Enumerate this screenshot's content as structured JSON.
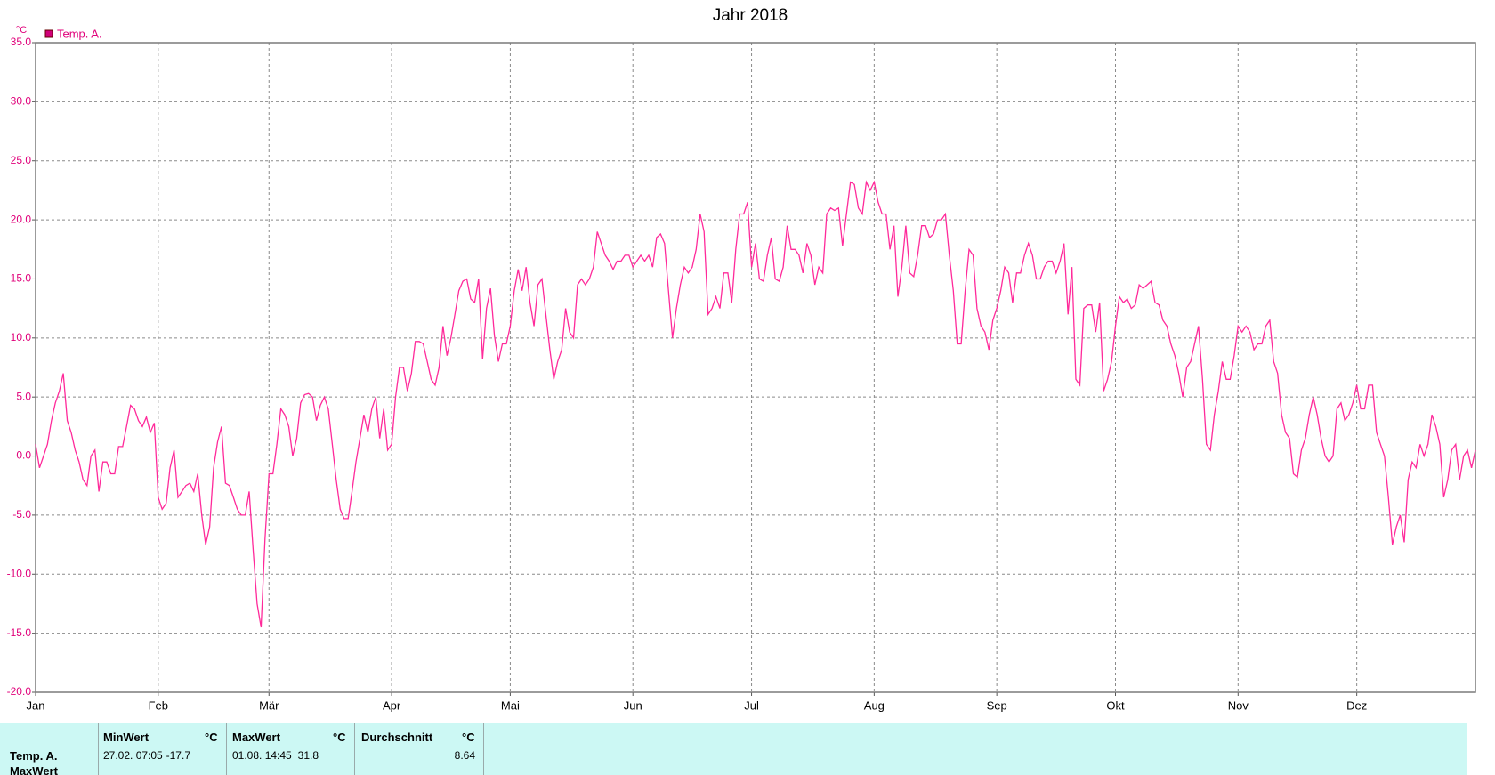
{
  "chart_data": {
    "type": "line",
    "title": "Jahr 2018",
    "y_unit": "°C",
    "series": [
      {
        "name": "Temp. A.",
        "color": "#ff2a9a",
        "values": [
          1,
          -1,
          0,
          1,
          3,
          4.5,
          5.5,
          7,
          3,
          2,
          0.5,
          -0.5,
          -2,
          -2.5,
          0,
          0.5,
          -3,
          -0.5,
          -0.5,
          -1.5,
          -1.5,
          0.8,
          0.8,
          2.5,
          4.3,
          4,
          3,
          2.5,
          3.3,
          2,
          2.8,
          -3.5,
          -4.5,
          -4,
          -1,
          0.5,
          -3.5,
          -3,
          -2.5,
          -2.3,
          -3,
          -1.5,
          -5,
          -7.5,
          -6,
          -1,
          1.2,
          2.5,
          -2.3,
          -2.5,
          -3.5,
          -4.5,
          -5,
          -5,
          -3,
          -8,
          -12.5,
          -14.5,
          -7,
          -1.5,
          -1.5,
          1,
          4,
          3.5,
          2.5,
          0,
          1.5,
          4.5,
          5.2,
          5.3,
          5,
          3,
          4.3,
          5,
          4,
          1,
          -2,
          -4.5,
          -5.3,
          -5.3,
          -3,
          -0.5,
          1.5,
          3.5,
          2,
          4,
          5,
          1.5,
          4,
          0.5,
          1,
          5,
          7.5,
          7.5,
          5.5,
          7,
          9.7,
          9.7,
          9.5,
          8,
          6.5,
          6,
          7.5,
          11,
          8.5,
          10,
          12,
          14,
          14.8,
          15,
          13.3,
          13,
          15,
          8.2,
          12.5,
          14.2,
          10.2,
          8,
          9.5,
          9.5,
          11,
          14,
          15.8,
          14,
          16,
          13,
          11,
          14.5,
          15,
          12,
          9,
          6.5,
          8,
          9,
          12.5,
          10.5,
          10,
          14.5,
          15,
          14.5,
          15,
          16,
          19,
          18,
          17,
          16.5,
          15.8,
          16.5,
          16.5,
          17,
          17,
          16,
          16.5,
          17,
          16.5,
          17,
          16,
          18.5,
          18.8,
          18,
          14,
          10,
          12.5,
          14.5,
          16,
          15.5,
          16,
          17.5,
          20.5,
          19,
          12,
          12.5,
          13.5,
          12.5,
          15.5,
          15.5,
          13,
          17.5,
          20.5,
          20.5,
          21.5,
          16,
          18,
          15,
          14.8,
          17,
          18.5,
          15,
          14.8,
          16,
          19.5,
          17.5,
          17.5,
          17,
          15.5,
          18,
          17,
          14.5,
          16,
          15.5,
          20.5,
          21,
          20.8,
          21,
          17.8,
          20.5,
          23.2,
          23,
          21,
          20.5,
          23.2,
          22.5,
          23.2,
          21.5,
          20.5,
          20.5,
          17.5,
          19.5,
          13.5,
          16,
          19.5,
          15.5,
          15.2,
          17,
          19.5,
          19.5,
          18.5,
          18.8,
          20,
          20,
          20.5,
          17,
          14,
          9.5,
          9.5,
          14,
          17.5,
          17,
          12.5,
          11,
          10.5,
          9,
          11.5,
          12.5,
          14,
          16,
          15.5,
          13,
          15.5,
          15.5,
          17,
          18,
          17,
          15,
          15,
          16,
          16.5,
          16.5,
          15.5,
          16.5,
          18,
          12,
          16,
          6.5,
          6,
          12.5,
          12.8,
          12.8,
          10.5,
          13,
          5.5,
          6.5,
          8,
          11,
          13.5,
          13,
          13.3,
          12.5,
          12.8,
          14.5,
          14.2,
          14.5,
          14.8,
          13,
          12.8,
          11.5,
          11,
          9.5,
          8.5,
          7,
          5,
          7.5,
          8,
          9.5,
          11,
          6.5,
          1,
          0.5,
          3.5,
          5.5,
          8,
          6.5,
          6.5,
          8.5,
          11,
          10.5,
          11,
          10.5,
          9,
          9.5,
          9.5,
          11,
          11.5,
          8,
          7,
          3.5,
          2,
          1.5,
          -1.5,
          -1.8,
          0.5,
          1.5,
          3.5,
          5,
          3.5,
          1.5,
          0,
          -0.5,
          0,
          4,
          4.5,
          3,
          3.5,
          4.5,
          6,
          4,
          4,
          6,
          6,
          2,
          1,
          0,
          -3.5,
          -7.5,
          -6,
          -5,
          -7.3,
          -2,
          -0.5,
          -1,
          1,
          0,
          1,
          3.5,
          2.5,
          1,
          -3.5,
          -2,
          0.5,
          1,
          -2,
          0,
          0.5,
          -1,
          0.5
        ]
      }
    ],
    "categories": [
      "Jan",
      null,
      null,
      null,
      null,
      null,
      null,
      null,
      null,
      null,
      null,
      null,
      null,
      null,
      null,
      null,
      null,
      null,
      null,
      null,
      null,
      null,
      null,
      null,
      null,
      null,
      null,
      null,
      null,
      null,
      null,
      "Feb",
      null,
      null,
      null,
      null,
      null,
      null,
      null,
      null,
      null,
      null,
      null,
      null,
      null,
      null,
      null,
      null,
      null,
      null,
      null,
      null,
      null,
      null,
      null,
      null,
      null,
      null,
      null,
      "Mär",
      null,
      null,
      null,
      null,
      null,
      null,
      null,
      null,
      null,
      null,
      null,
      null,
      null,
      null,
      null,
      null,
      null,
      null,
      null,
      null,
      null,
      null,
      null,
      null,
      null,
      null,
      null,
      null,
      null,
      null,
      "Apr",
      null,
      null,
      null,
      null,
      null,
      null,
      null,
      null,
      null,
      null,
      null,
      null,
      null,
      null,
      null,
      null,
      null,
      null,
      null,
      null,
      null,
      null,
      null,
      null,
      null,
      null,
      null,
      null,
      null,
      "Mai",
      null,
      null,
      null,
      null,
      null,
      null,
      null,
      null,
      null,
      null,
      null,
      null,
      null,
      null,
      null,
      null,
      null,
      null,
      null,
      null,
      null,
      null,
      null,
      null,
      null,
      null,
      null,
      null,
      null,
      null,
      "Jun",
      null,
      null,
      null,
      null,
      null,
      null,
      null,
      null,
      null,
      null,
      null,
      null,
      null,
      null,
      null,
      null,
      null,
      null,
      null,
      null,
      null,
      null,
      null,
      null,
      null,
      null,
      null,
      null,
      null,
      "Jul",
      null,
      null,
      null,
      null,
      null,
      null,
      null,
      null,
      null,
      null,
      null,
      null,
      null,
      null,
      null,
      null,
      null,
      null,
      null,
      null,
      null,
      null,
      null,
      null,
      null,
      null,
      null,
      null,
      null,
      null,
      "Aug",
      null,
      null,
      null,
      null,
      null,
      null,
      null,
      null,
      null,
      null,
      null,
      null,
      null,
      null,
      null,
      null,
      null,
      null,
      null,
      null,
      null,
      null,
      null,
      null,
      null,
      null,
      null,
      null,
      null,
      null,
      "Sep",
      null,
      null,
      null,
      null,
      null,
      null,
      null,
      null,
      null,
      null,
      null,
      null,
      null,
      null,
      null,
      null,
      null,
      null,
      null,
      null,
      null,
      null,
      null,
      null,
      null,
      null,
      null,
      null,
      null,
      "Okt",
      null,
      null,
      null,
      null,
      null,
      null,
      null,
      null,
      null,
      null,
      null,
      null,
      null,
      null,
      null,
      null,
      null,
      null,
      null,
      null,
      null,
      null,
      null,
      null,
      null,
      null,
      null,
      null,
      null,
      null,
      "Nov",
      null,
      null,
      null,
      null,
      null,
      null,
      null,
      null,
      null,
      null,
      null,
      null,
      null,
      null,
      null,
      null,
      null,
      null,
      null,
      null,
      null,
      null,
      null,
      null,
      null,
      null,
      null,
      null,
      null,
      "Dez",
      null,
      null,
      null,
      null,
      null,
      null,
      null,
      null,
      null,
      null,
      null,
      null,
      null,
      null,
      null,
      null,
      null,
      null,
      null,
      null,
      null,
      null,
      null,
      null,
      null,
      null,
      null,
      null,
      null,
      null
    ],
    "ylim": [
      -20,
      35
    ],
    "yticks": [
      {
        "value": -20,
        "label": "-20.0"
      },
      {
        "value": -15,
        "label": "-15.0"
      },
      {
        "value": -10,
        "label": "-10.0"
      },
      {
        "value": -5,
        "label": "-5.0"
      },
      {
        "value": 0,
        "label": "0.0"
      },
      {
        "value": 5,
        "label": "5.0"
      },
      {
        "value": 10,
        "label": "10.0"
      },
      {
        "value": 15,
        "label": "15.0"
      },
      {
        "value": 20,
        "label": "20.0"
      },
      {
        "value": 25,
        "label": "25.0"
      },
      {
        "value": 30,
        "label": "30.0"
      },
      {
        "value": 35,
        "label": "35.0"
      }
    ],
    "grid": true,
    "legend": "top-left"
  },
  "summary": {
    "row_label": "Temp. A.",
    "row_label_2": "MaxWert",
    "columns": [
      {
        "header": "MinWert",
        "unit": "°C",
        "time": "27.02. 07:05",
        "value": -17.7
      },
      {
        "header": "MaxWert",
        "unit": "°C",
        "time": "01.08. 14:45",
        "value": 31.8
      },
      {
        "header": "Durchschnitt",
        "unit": "°C",
        "value": 8.64
      }
    ]
  }
}
